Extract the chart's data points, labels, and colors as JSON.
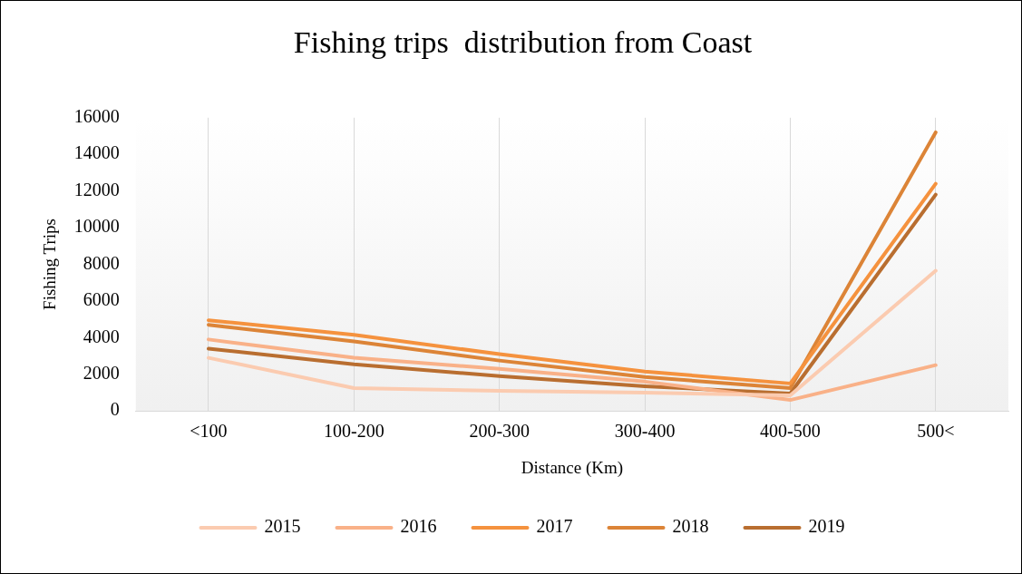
{
  "chart_data": {
    "type": "line",
    "title": "Fishing trips  distribution from Coast",
    "xlabel": "Distance (Km)",
    "ylabel": "Fishing Trips",
    "categories": [
      "<100",
      "100-200",
      "200-300",
      "300-400",
      "400-500",
      "500<"
    ],
    "series": [
      {
        "name": "2015",
        "color": "#fbcbb0",
        "values": [
          2900,
          1250,
          1100,
          1000,
          850,
          7650
        ]
      },
      {
        "name": "2016",
        "color": "#f9b188",
        "values": [
          3900,
          2900,
          2300,
          1600,
          600,
          2500
        ]
      },
      {
        "name": "2017",
        "color": "#f5923e",
        "values": [
          4950,
          4150,
          3100,
          2150,
          1500,
          12400
        ]
      },
      {
        "name": "2018",
        "color": "#dc8437",
        "values": [
          4700,
          3800,
          2750,
          1850,
          1250,
          15200
        ]
      },
      {
        "name": "2019",
        "color": "#b96e30",
        "values": [
          3400,
          2550,
          1900,
          1350,
          950,
          11800
        ]
      }
    ],
    "ylim": [
      0,
      16000
    ],
    "yticks": [
      0,
      2000,
      4000,
      6000,
      8000,
      10000,
      12000,
      14000,
      16000
    ],
    "grid": "x",
    "legend": "bottom",
    "line_style": "solid",
    "marker": "none"
  }
}
